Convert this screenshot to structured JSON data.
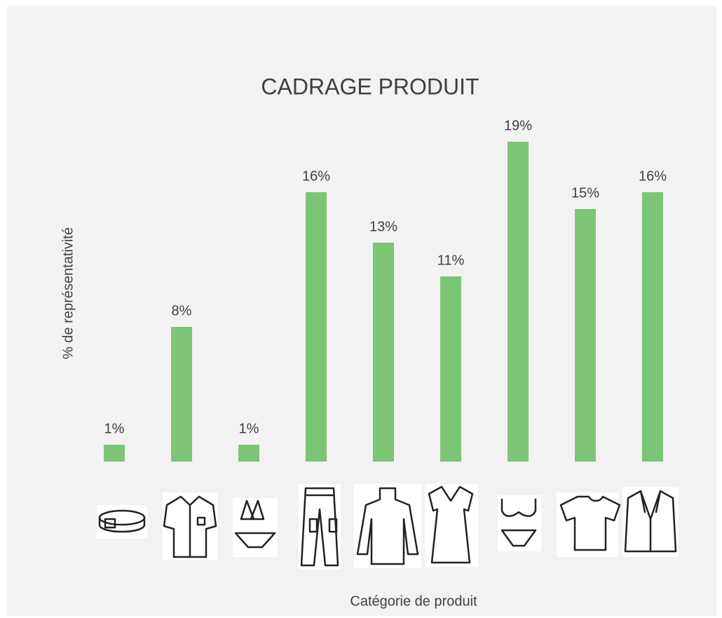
{
  "chart_data": {
    "type": "bar",
    "title": "CADRAGE PRODUIT",
    "y_label": "% de représentativité",
    "x_label": "Catégorie de produit",
    "categories": [
      null,
      null,
      null,
      null,
      null,
      null,
      null,
      null,
      null
    ],
    "values": [
      1,
      8,
      1,
      16,
      13,
      11,
      19,
      15,
      16
    ],
    "value_labels": [
      "1%",
      "8%",
      "1%",
      "16%",
      "13%",
      "11%",
      "19%",
      "15%",
      "16%"
    ],
    "color": "#7dc576",
    "ylim": [
      0,
      20
    ],
    "grid": false
  }
}
